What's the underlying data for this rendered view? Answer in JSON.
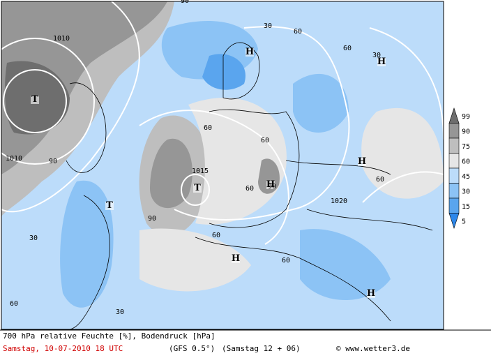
{
  "map": {
    "labels": [
      "H",
      "H",
      "H",
      "H",
      "H",
      "H",
      "T",
      "T",
      "T",
      "1010",
      "1010",
      "1015",
      "1020",
      "90",
      "90",
      "90",
      "90",
      "30",
      "30",
      "30",
      "30",
      "60",
      "60",
      "60",
      "60",
      "60",
      "60",
      "60",
      "60",
      "60"
    ],
    "legend": {
      "levels": [
        99,
        90,
        75,
        60,
        45,
        30,
        15,
        5
      ],
      "colors": [
        "#6e6e6e",
        "#969696",
        "#bebebe",
        "#e6e6e6",
        "#bcdcfa",
        "#8cc3f5",
        "#5aa5ee",
        "#2d87ea"
      ]
    }
  },
  "footer": {
    "title": "700 hPa relative Feuchte [%], Bodendruck [hPa]",
    "date": "Samstag, 10-07-2010  18 UTC",
    "model": "(GFS 0.5°)",
    "run": "(Samstag 12 + 06)",
    "credit": "© www.wetter3.de"
  }
}
